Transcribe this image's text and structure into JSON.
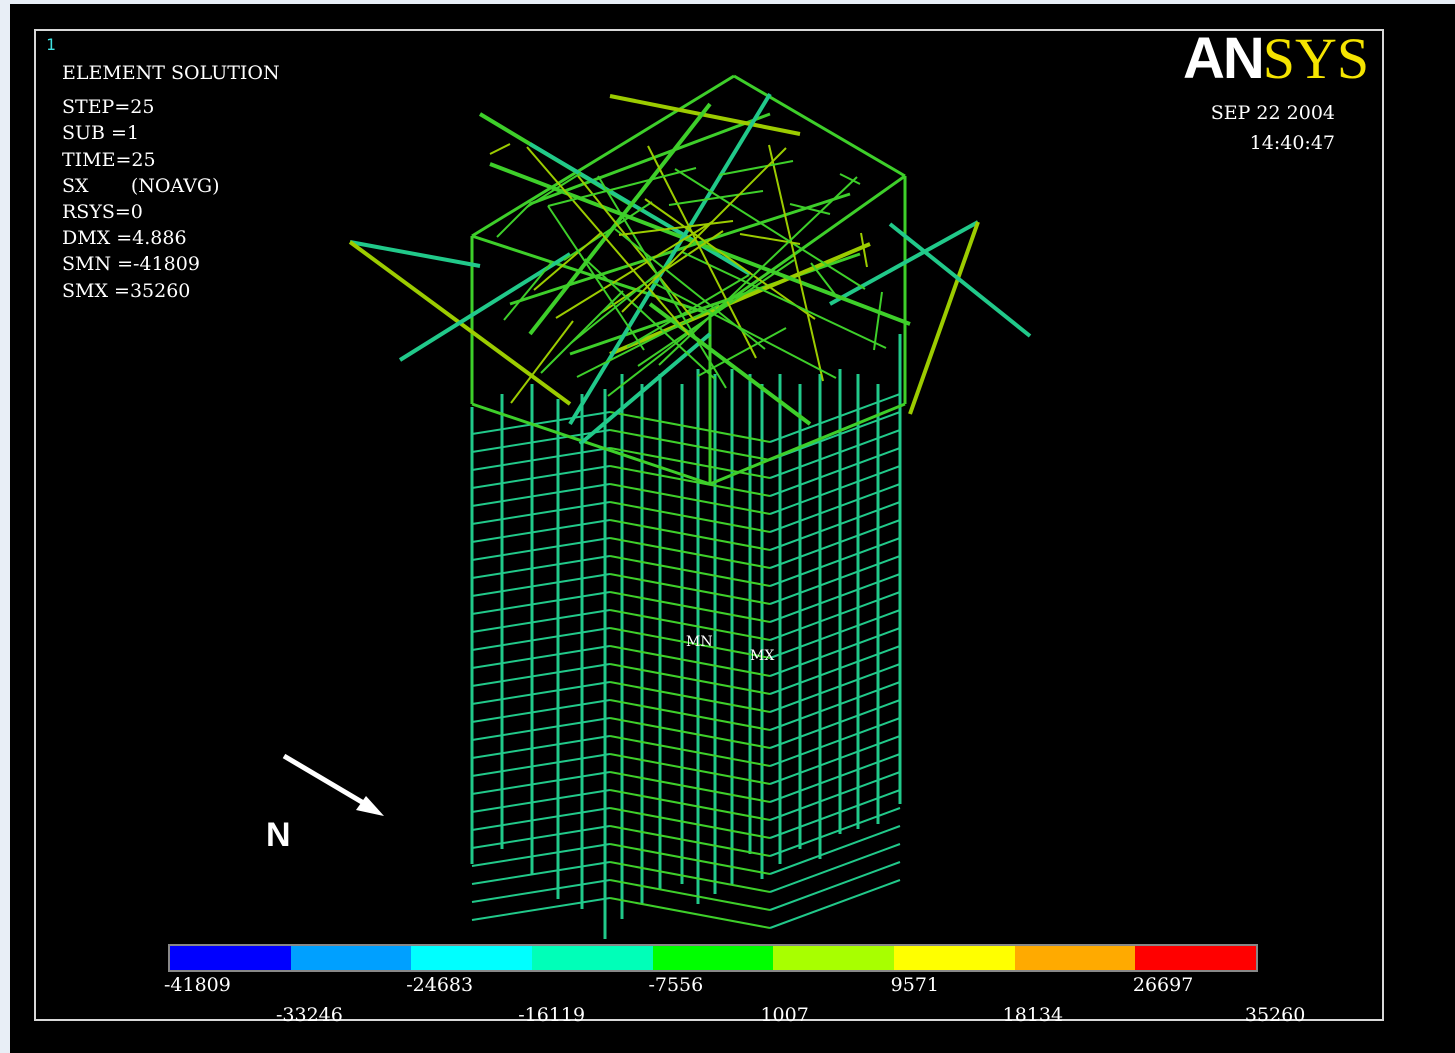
{
  "window": {
    "number": "1",
    "title_label": "ELEMENT SOLUTION"
  },
  "stats": {
    "step": "STEP=25",
    "sub": "SUB =1",
    "time": "TIME=25",
    "sx": "SX       (NOAVG)",
    "rsys": "RSYS=0",
    "dmx": "DMX =4.886",
    "smn": "SMN =-41809",
    "smx": "SMX =35260"
  },
  "logo": {
    "part1": "AN",
    "part2": "SYS"
  },
  "timestamp": {
    "date": "SEP 22 2004",
    "time": "14:40:47"
  },
  "model_labels": {
    "min": "MN",
    "max": "MX"
  },
  "north_label": "N",
  "legend": {
    "colors": [
      "#0000ff",
      "#00a0ff",
      "#00ffff",
      "#00ffb8",
      "#00ff00",
      "#a8ff00",
      "#ffff00",
      "#ffaa00",
      "#ff0000"
    ],
    "top_ticks": [
      "-41809",
      "-24683",
      "-7556",
      "9571",
      "26697"
    ],
    "bottom_ticks": [
      "-33246",
      "-16119",
      "1007",
      "18134",
      "35260"
    ]
  },
  "colors": {
    "background": "#000000",
    "frame_border": "#d8d8d8",
    "window_number": "#40e0e0",
    "logo_accent": "#f5e400",
    "beam_primary": "#21c98a",
    "beam_secondary": "#3ecf2a",
    "beam_yellowish": "#9ccc00"
  }
}
